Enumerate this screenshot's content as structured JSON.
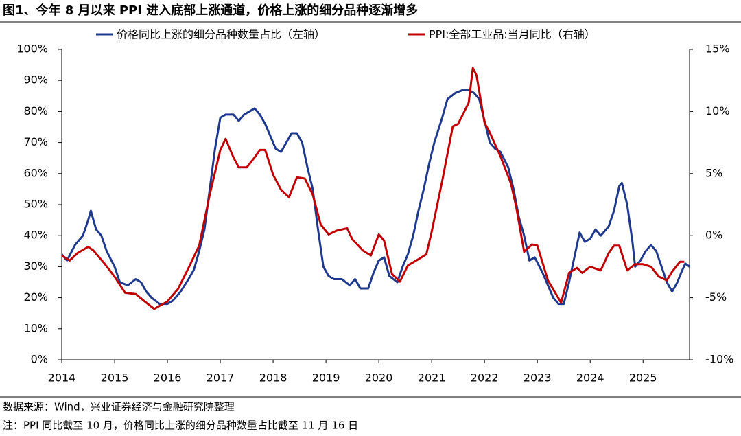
{
  "chart_data": {
    "type": "line",
    "title": "图1、今年 8 月以来 PPI 进入底部上涨通道，价格上涨的细分品种逐渐增多",
    "source": "数据来源：Wind，兴业证券经济与金融研究院整理",
    "note": "注：PPI 同比截至 10 月，价格同比上涨的细分品种数量占比截至 11 月 16 日",
    "xlim": [
      2014,
      2025.88
    ],
    "xticks": [
      2014,
      2015,
      2016,
      2017,
      2018,
      2019,
      2020,
      2021,
      2022,
      2023,
      2024,
      2025
    ],
    "ylim": [
      0,
      100
    ],
    "yticks": [
      {
        "value": 0,
        "label": "0%"
      },
      {
        "value": 10,
        "label": "10%"
      },
      {
        "value": 20,
        "label": "20%"
      },
      {
        "value": 30,
        "label": "30%"
      },
      {
        "value": 40,
        "label": "40%"
      },
      {
        "value": 50,
        "label": "50%"
      },
      {
        "value": 60,
        "label": "60%"
      },
      {
        "value": 70,
        "label": "70%"
      },
      {
        "value": 80,
        "label": "80%"
      },
      {
        "value": 90,
        "label": "90%"
      },
      {
        "value": 100,
        "label": "100%"
      }
    ],
    "y2lim": [
      -10,
      15
    ],
    "y2ticks": [
      {
        "value": -10,
        "label": "-10%"
      },
      {
        "value": -5,
        "label": "-5%"
      },
      {
        "value": 0,
        "label": "0%"
      },
      {
        "value": 5,
        "label": "5%"
      },
      {
        "value": 10,
        "label": "10%"
      },
      {
        "value": 15,
        "label": "15%"
      }
    ],
    "grid": false,
    "series": [
      {
        "name": "价格同比上涨的细分品种数量占比（左轴）",
        "color": "#1f3a8c",
        "axis": "y",
        "x": [
          2014.0,
          2014.1,
          2014.25,
          2014.4,
          2014.5,
          2014.55,
          2014.65,
          2014.75,
          2014.85,
          2015.0,
          2015.1,
          2015.25,
          2015.4,
          2015.5,
          2015.6,
          2015.7,
          2015.85,
          2016.0,
          2016.1,
          2016.25,
          2016.4,
          2016.5,
          2016.6,
          2016.7,
          2016.8,
          2016.9,
          2017.0,
          2017.1,
          2017.25,
          2017.35,
          2017.45,
          2017.55,
          2017.65,
          2017.75,
          2017.85,
          2017.95,
          2018.05,
          2018.15,
          2018.25,
          2018.35,
          2018.45,
          2018.55,
          2018.65,
          2018.75,
          2018.85,
          2018.95,
          2019.05,
          2019.15,
          2019.3,
          2019.45,
          2019.55,
          2019.65,
          2019.8,
          2019.9,
          2020.0,
          2020.1,
          2020.2,
          2020.35,
          2020.45,
          2020.55,
          2020.65,
          2020.75,
          2020.85,
          2020.95,
          2021.05,
          2021.2,
          2021.3,
          2021.45,
          2021.6,
          2021.7,
          2021.8,
          2021.9,
          2022.0,
          2022.1,
          2022.2,
          2022.3,
          2022.45,
          2022.55,
          2022.65,
          2022.75,
          2022.85,
          2022.95,
          2023.1,
          2023.2,
          2023.3,
          2023.4,
          2023.5,
          2023.6,
          2023.7,
          2023.8,
          2023.9,
          2024.0,
          2024.1,
          2024.2,
          2024.35,
          2024.45,
          2024.55,
          2024.6,
          2024.7,
          2024.8,
          2024.85,
          2024.95,
          2025.05,
          2025.15,
          2025.25,
          2025.35,
          2025.45,
          2025.55,
          2025.65,
          2025.72,
          2025.8,
          2025.88
        ],
        "values": [
          34,
          32,
          37,
          40,
          45,
          48,
          42,
          40,
          35,
          30,
          25,
          24,
          26,
          25,
          22,
          20,
          18,
          18,
          19,
          22,
          26,
          29,
          35,
          42,
          55,
          68,
          78,
          79,
          79,
          77,
          79,
          80,
          81,
          79,
          76,
          72,
          68,
          67,
          70,
          73,
          73,
          70,
          62,
          55,
          42,
          30,
          27,
          26,
          26,
          24,
          26,
          23,
          23,
          28,
          32,
          33,
          27,
          25,
          30,
          34,
          40,
          48,
          55,
          63,
          70,
          78,
          84,
          86,
          87,
          87,
          86,
          84,
          77,
          70,
          68,
          67,
          62,
          55,
          46,
          40,
          32,
          33,
          28,
          24,
          20,
          18,
          18,
          25,
          33,
          41,
          38,
          39,
          42,
          40,
          43,
          48,
          56,
          57,
          50,
          38,
          30,
          32,
          35,
          37,
          35,
          30,
          25,
          22,
          25,
          28,
          31,
          30
        ]
      },
      {
        "name": "PPI:全部工业品:当月同比（右轴）",
        "color": "#c00000",
        "axis": "y2",
        "x": [
          2014.0,
          2014.15,
          2014.3,
          2014.5,
          2014.6,
          2014.8,
          2015.0,
          2015.2,
          2015.4,
          2015.6,
          2015.75,
          2016.0,
          2016.2,
          2016.4,
          2016.6,
          2016.8,
          2017.0,
          2017.1,
          2017.25,
          2017.35,
          2017.5,
          2017.65,
          2017.75,
          2017.85,
          2018.0,
          2018.15,
          2018.3,
          2018.45,
          2018.6,
          2018.75,
          2018.9,
          2019.05,
          2019.2,
          2019.4,
          2019.5,
          2019.7,
          2019.85,
          2020.0,
          2020.1,
          2020.25,
          2020.4,
          2020.55,
          2020.75,
          2020.9,
          2021.0,
          2021.2,
          2021.4,
          2021.5,
          2021.7,
          2021.78,
          2021.85,
          2022.0,
          2022.1,
          2022.3,
          2022.5,
          2022.6,
          2022.75,
          2022.9,
          2023.0,
          2023.2,
          2023.45,
          2023.6,
          2023.75,
          2023.85,
          2024.0,
          2024.2,
          2024.35,
          2024.45,
          2024.55,
          2024.7,
          2024.85,
          2025.0,
          2025.15,
          2025.3,
          2025.45,
          2025.55,
          2025.7,
          2025.78
        ],
        "values": [
          -1.6,
          -2.0,
          -1.4,
          -0.9,
          -1.2,
          -2.2,
          -3.3,
          -4.6,
          -4.7,
          -5.4,
          -5.9,
          -5.3,
          -4.3,
          -2.6,
          -0.8,
          3.3,
          6.9,
          7.8,
          6.3,
          5.5,
          5.5,
          6.3,
          6.9,
          6.9,
          4.9,
          3.7,
          3.1,
          4.7,
          4.6,
          3.3,
          0.9,
          0.1,
          0.4,
          0.6,
          -0.3,
          -1.2,
          -1.6,
          0.1,
          -0.4,
          -3.1,
          -3.7,
          -2.4,
          -1.9,
          -1.5,
          0.3,
          4.4,
          8.8,
          9.0,
          10.7,
          13.5,
          12.9,
          9.1,
          8.3,
          6.4,
          4.2,
          2.3,
          -1.3,
          -0.7,
          -0.8,
          -3.6,
          -5.4,
          -3.0,
          -2.6,
          -3.0,
          -2.5,
          -2.8,
          -1.4,
          -0.8,
          -0.8,
          -2.8,
          -2.3,
          -2.3,
          -2.5,
          -3.3,
          -3.6,
          -2.9,
          -2.1,
          -2.1
        ]
      }
    ]
  }
}
